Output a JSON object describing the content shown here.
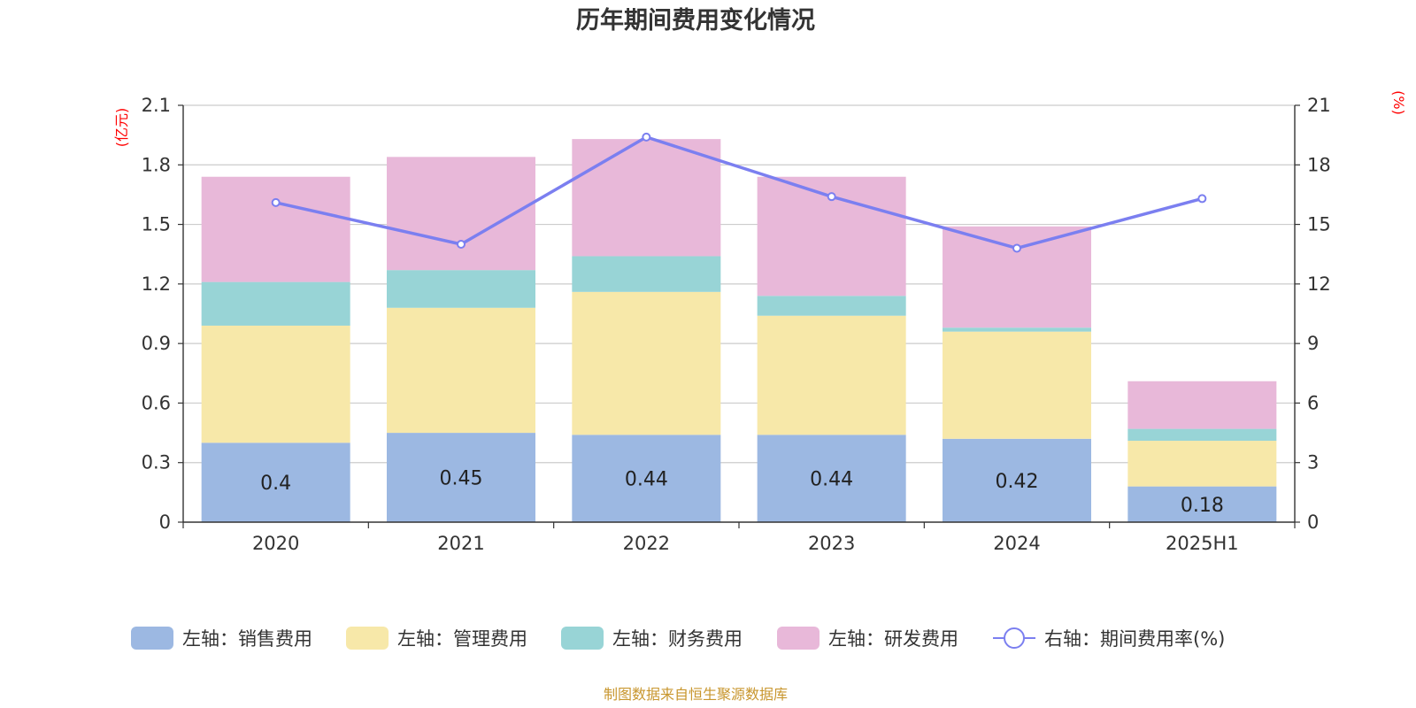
{
  "chart_data": {
    "type": "bar",
    "stacked": true,
    "title": "历年期间费用变化情况",
    "categories": [
      "2020",
      "2021",
      "2022",
      "2023",
      "2024",
      "2025H1"
    ],
    "y_left": {
      "unit": "(亿元)",
      "min": 0,
      "max": 2.1,
      "ticks": [
        "0",
        "0.3",
        "0.6",
        "0.9",
        "1.2",
        "1.5",
        "1.8",
        "2.1"
      ]
    },
    "y_right": {
      "unit": "(%)",
      "min": 0,
      "max": 21,
      "ticks": [
        "0",
        "3",
        "6",
        "9",
        "12",
        "15",
        "18",
        "21"
      ]
    },
    "grid": true,
    "legend_position": "bottom",
    "series": [
      {
        "name": "左轴：销售费用",
        "axis": "left",
        "color": "#9cb8e2",
        "values": [
          0.4,
          0.45,
          0.44,
          0.44,
          0.42,
          0.18
        ],
        "labels": [
          "0.4",
          "0.45",
          "0.44",
          "0.44",
          "0.42",
          "0.18"
        ]
      },
      {
        "name": "左轴：管理费用",
        "axis": "left",
        "color": "#f7e8a9",
        "values": [
          0.59,
          0.63,
          0.72,
          0.6,
          0.54,
          0.23
        ]
      },
      {
        "name": "左轴：财务费用",
        "axis": "left",
        "color": "#98d4d6",
        "values": [
          0.22,
          0.19,
          0.18,
          0.1,
          0.02,
          0.06
        ]
      },
      {
        "name": "左轴：研发费用",
        "axis": "left",
        "color": "#e8b8d9",
        "values": [
          0.53,
          0.57,
          0.59,
          0.6,
          0.51,
          0.24
        ]
      },
      {
        "name": "右轴：期间费用率(%)",
        "axis": "right",
        "type": "line",
        "color": "#7b7ff0",
        "values": [
          16.1,
          14.0,
          19.4,
          16.4,
          13.8,
          16.3
        ]
      }
    ],
    "source": "制图数据来自恒生聚源数据库"
  }
}
